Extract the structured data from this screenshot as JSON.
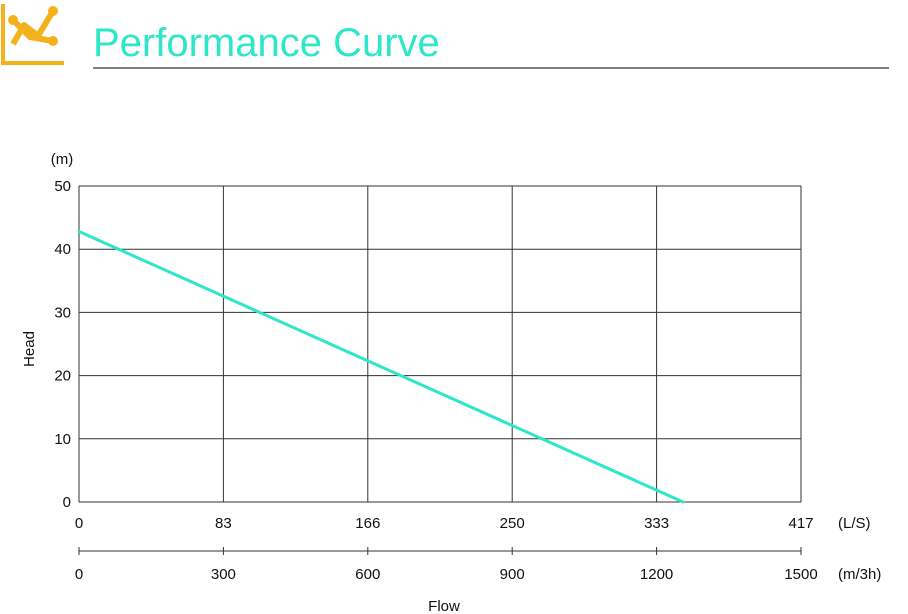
{
  "header": {
    "title": "Performance Curve",
    "icon": "line-chart-icon",
    "title_color": "#2ee6c8",
    "icon_color": "#f3b21b"
  },
  "chart_data": {
    "type": "line",
    "title": "",
    "ylabel": "Head",
    "y_unit": "(m)",
    "ylim": [
      0,
      50
    ],
    "yticks": [
      "0",
      "10",
      "20",
      "30",
      "40",
      "50"
    ],
    "xlabel": "Flow",
    "x_unit_primary": "(L/S)",
    "xticks_primary": [
      "0",
      "83",
      "166",
      "250",
      "333",
      "417"
    ],
    "x_unit_secondary": "(m/3h)",
    "xticks_secondary": [
      "0",
      "300",
      "600",
      "900",
      "1200",
      "1500"
    ],
    "xlim": [
      0,
      1500
    ],
    "grid": true,
    "series": [
      {
        "color": "#2ee6c8",
        "x": [
          0,
          1255
        ],
        "y": [
          42.8,
          0
        ]
      }
    ]
  }
}
